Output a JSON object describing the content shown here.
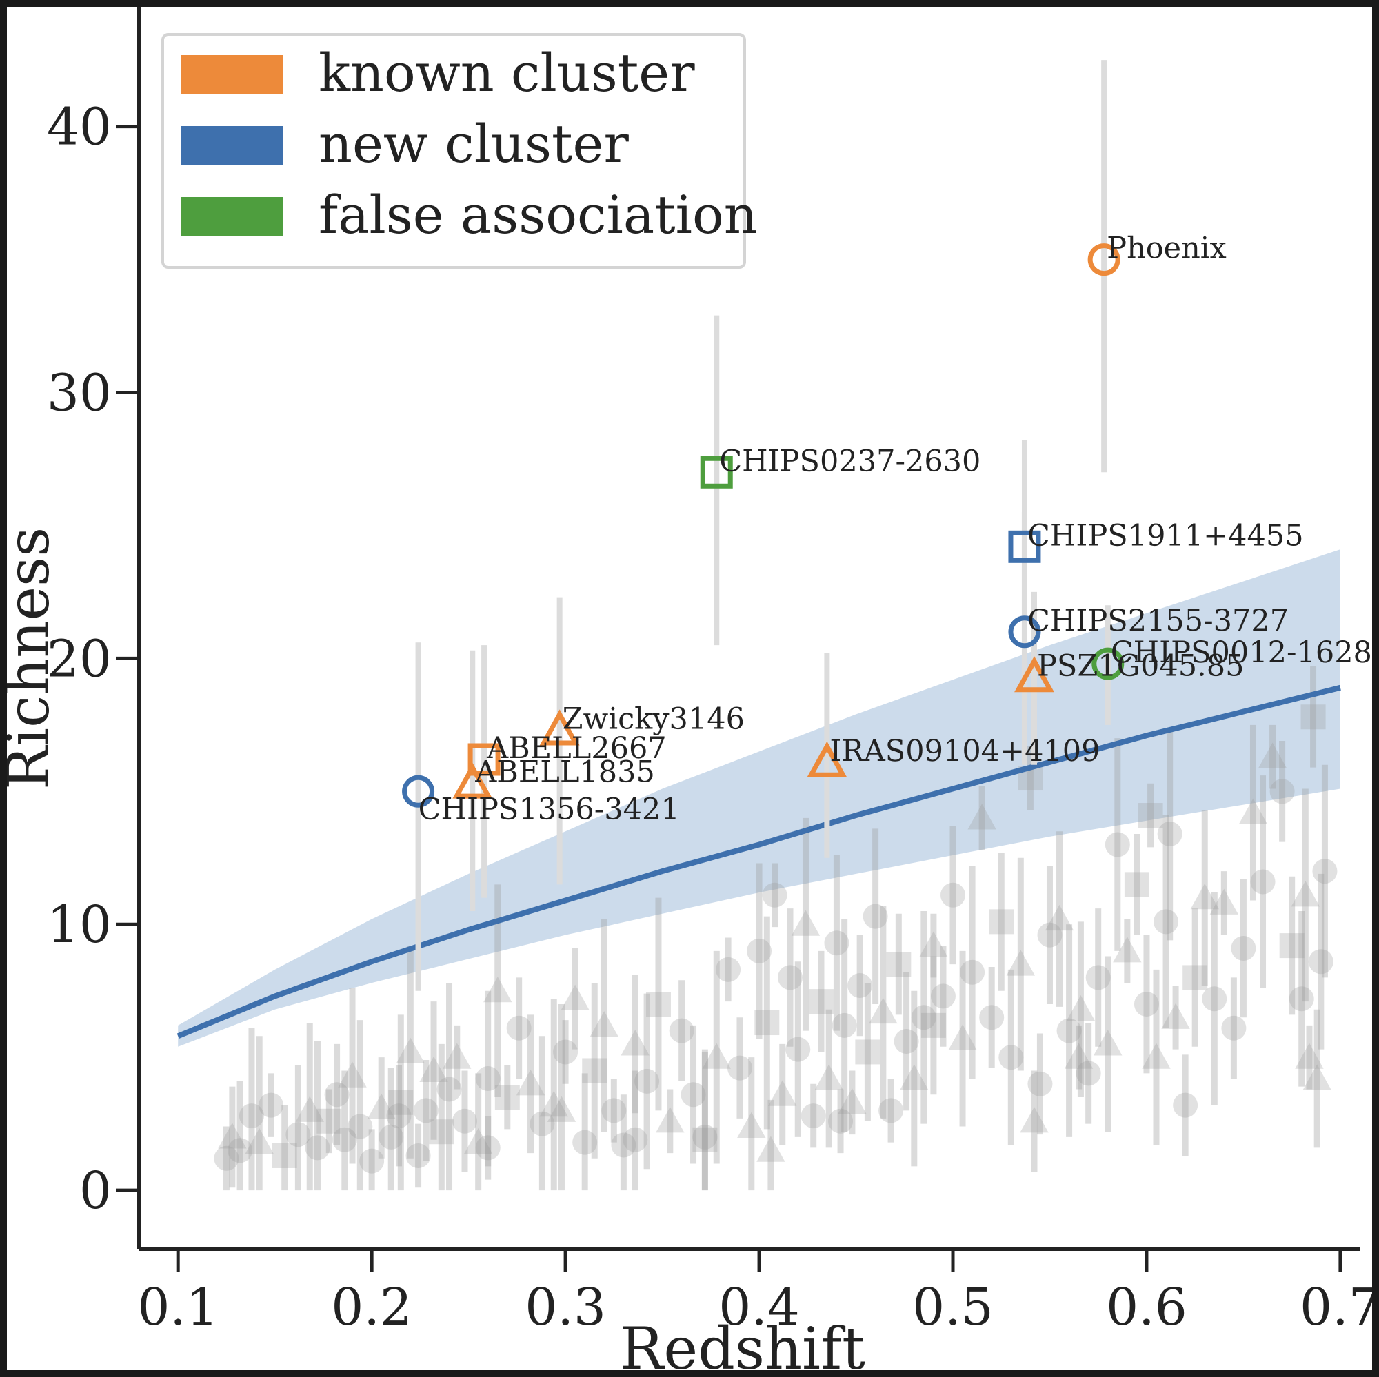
{
  "chart_data": {
    "type": "scatter",
    "xlabel": "Redshift",
    "ylabel": "Richness",
    "xlim": [
      0.08,
      0.71
    ],
    "ylim": [
      -2.2,
      44.5
    ],
    "xticks": [
      "0.1",
      "0.2",
      "0.3",
      "0.4",
      "0.5",
      "0.6",
      "0.7"
    ],
    "yticks": [
      "0",
      "10",
      "20",
      "30",
      "40"
    ],
    "grid": false,
    "legend": {
      "placement": "top-left",
      "entries": [
        {
          "label": "known cluster",
          "color": "#ed8a3a"
        },
        {
          "label": "new cluster",
          "color": "#3e70ad"
        },
        {
          "label": "false association",
          "color": "#4e9e3e"
        }
      ]
    },
    "colors": {
      "known": "#ed8a3a",
      "new": "#3e70ad",
      "false": "#4e9e3e",
      "background": "#9a9a9a",
      "errorbar": "#dcdcdc",
      "band": "#c3d5e7"
    },
    "threshold": {
      "x": [
        0.1,
        0.15,
        0.2,
        0.25,
        0.3,
        0.35,
        0.4,
        0.45,
        0.5,
        0.55,
        0.6,
        0.65,
        0.7
      ],
      "y": [
        5.8,
        7.3,
        8.6,
        9.8,
        10.9,
        12.0,
        13.0,
        14.1,
        15.1,
        16.1,
        17.1,
        18.0,
        18.9
      ],
      "band_low": [
        5.4,
        6.8,
        7.8,
        8.7,
        9.6,
        10.4,
        11.2,
        11.9,
        12.6,
        13.3,
        13.9,
        14.5,
        15.1
      ],
      "band_high": [
        6.2,
        8.3,
        10.2,
        11.9,
        13.5,
        15.1,
        16.5,
        17.9,
        19.2,
        20.5,
        21.7,
        22.9,
        24.1
      ]
    },
    "highlighted": [
      {
        "label": "Phoenix",
        "x": 0.578,
        "y": 35.0,
        "yerr_low": 27.0,
        "yerr_high": 42.5,
        "category": "known",
        "marker": "circle"
      },
      {
        "label": "CHIPS0237-2630",
        "x": 0.378,
        "y": 27.0,
        "yerr_low": 20.5,
        "yerr_high": 32.9,
        "category": "false",
        "marker": "square"
      },
      {
        "label": "CHIPS1911+4455",
        "x": 0.537,
        "y": 24.2,
        "yerr_low": 18.0,
        "yerr_high": 28.2,
        "category": "new",
        "marker": "square"
      },
      {
        "label": "CHIPS2155-3727",
        "x": 0.537,
        "y": 21.0,
        "yerr_low": 16.0,
        "yerr_high": 25.5,
        "category": "new",
        "marker": "circle"
      },
      {
        "label": "CHIPS0012-1628",
        "x": 0.58,
        "y": 19.8,
        "yerr_low": 17.5,
        "yerr_high": 22.0,
        "category": "false",
        "marker": "circle"
      },
      {
        "label": "PSZ1G045.85",
        "x": 0.542,
        "y": 19.3,
        "yerr_low": 16.0,
        "yerr_high": 22.5,
        "category": "known",
        "marker": "triangle"
      },
      {
        "label": "IRAS09104+4109",
        "x": 0.435,
        "y": 16.1,
        "yerr_low": 12.5,
        "yerr_high": 20.2,
        "category": "known",
        "marker": "triangle"
      },
      {
        "label": "Zwicky3146",
        "x": 0.297,
        "y": 17.3,
        "yerr_low": 11.5,
        "yerr_high": 22.3,
        "category": "known",
        "marker": "triangle"
      },
      {
        "label": "ABELL2667",
        "x": 0.258,
        "y": 16.2,
        "yerr_low": 11.0,
        "yerr_high": 20.5,
        "category": "known",
        "marker": "square"
      },
      {
        "label": "ABELL1835",
        "x": 0.252,
        "y": 15.3,
        "yerr_low": 10.5,
        "yerr_high": 20.3,
        "category": "known",
        "marker": "triangle"
      },
      {
        "label": "CHIPS1356-3421",
        "x": 0.224,
        "y": 15.0,
        "yerr_low": 7.5,
        "yerr_high": 20.6,
        "category": "new",
        "marker": "circle"
      }
    ],
    "background_points": [
      [
        0.125,
        1.2,
        "c"
      ],
      [
        0.128,
        2.0,
        "t"
      ],
      [
        0.132,
        1.5,
        "c"
      ],
      [
        0.138,
        2.8,
        "c"
      ],
      [
        0.142,
        1.8,
        "t"
      ],
      [
        0.148,
        3.2,
        "c"
      ],
      [
        0.155,
        1.3,
        "s"
      ],
      [
        0.162,
        2.1,
        "c"
      ],
      [
        0.168,
        3.0,
        "t"
      ],
      [
        0.172,
        1.6,
        "c"
      ],
      [
        0.178,
        2.6,
        "s"
      ],
      [
        0.182,
        3.6,
        "c"
      ],
      [
        0.186,
        1.9,
        "c"
      ],
      [
        0.19,
        4.3,
        "t"
      ],
      [
        0.194,
        2.4,
        "c"
      ],
      [
        0.2,
        1.1,
        "c"
      ],
      [
        0.205,
        3.1,
        "t"
      ],
      [
        0.21,
        2.0,
        "c"
      ],
      [
        0.215,
        3.3,
        "s"
      ],
      [
        0.22,
        5.2,
        "t"
      ],
      [
        0.224,
        1.3,
        "c"
      ],
      [
        0.228,
        3.0,
        "c"
      ],
      [
        0.232,
        4.5,
        "t"
      ],
      [
        0.236,
        2.2,
        "s"
      ],
      [
        0.24,
        3.8,
        "c"
      ],
      [
        0.244,
        5.0,
        "t"
      ],
      [
        0.248,
        2.6,
        "c"
      ],
      [
        0.255,
        1.8,
        "t"
      ],
      [
        0.26,
        4.2,
        "c"
      ],
      [
        0.265,
        7.5,
        "t"
      ],
      [
        0.27,
        3.5,
        "s"
      ],
      [
        0.276,
        6.1,
        "c"
      ],
      [
        0.282,
        4.0,
        "t"
      ],
      [
        0.288,
        2.5,
        "c"
      ],
      [
        0.294,
        3.2,
        "t"
      ],
      [
        0.3,
        5.2,
        "c"
      ],
      [
        0.305,
        7.2,
        "t"
      ],
      [
        0.31,
        1.8,
        "c"
      ],
      [
        0.315,
        4.5,
        "s"
      ],
      [
        0.32,
        6.2,
        "t"
      ],
      [
        0.325,
        3.0,
        "c"
      ],
      [
        0.33,
        1.7,
        "c"
      ],
      [
        0.336,
        5.5,
        "t"
      ],
      [
        0.342,
        4.1,
        "c"
      ],
      [
        0.348,
        7.0,
        "s"
      ],
      [
        0.354,
        2.6,
        "t"
      ],
      [
        0.36,
        6.0,
        "c"
      ],
      [
        0.366,
        3.6,
        "c"
      ],
      [
        0.372,
        1.9,
        "s"
      ],
      [
        0.378,
        5.0,
        "t"
      ],
      [
        0.384,
        8.3,
        "c"
      ],
      [
        0.39,
        4.6,
        "c"
      ],
      [
        0.396,
        2.4,
        "t"
      ],
      [
        0.4,
        9.0,
        "c"
      ],
      [
        0.404,
        6.3,
        "s"
      ],
      [
        0.408,
        11.1,
        "c"
      ],
      [
        0.412,
        3.6,
        "t"
      ],
      [
        0.416,
        8.0,
        "c"
      ],
      [
        0.42,
        5.3,
        "c"
      ],
      [
        0.424,
        10.0,
        "t"
      ],
      [
        0.428,
        2.8,
        "c"
      ],
      [
        0.432,
        7.1,
        "s"
      ],
      [
        0.436,
        4.2,
        "t"
      ],
      [
        0.44,
        9.3,
        "c"
      ],
      [
        0.444,
        6.2,
        "c"
      ],
      [
        0.448,
        3.3,
        "t"
      ],
      [
        0.452,
        7.7,
        "c"
      ],
      [
        0.456,
        5.2,
        "s"
      ],
      [
        0.46,
        10.3,
        "c"
      ],
      [
        0.464,
        6.7,
        "t"
      ],
      [
        0.468,
        3.0,
        "c"
      ],
      [
        0.472,
        8.5,
        "s"
      ],
      [
        0.476,
        5.6,
        "c"
      ],
      [
        0.48,
        4.2,
        "t"
      ],
      [
        0.485,
        6.5,
        "c"
      ],
      [
        0.49,
        9.2,
        "t"
      ],
      [
        0.495,
        7.3,
        "c"
      ],
      [
        0.5,
        11.1,
        "c"
      ],
      [
        0.505,
        5.7,
        "t"
      ],
      [
        0.51,
        8.2,
        "c"
      ],
      [
        0.515,
        14.0,
        "t"
      ],
      [
        0.52,
        6.5,
        "c"
      ],
      [
        0.525,
        10.1,
        "s"
      ],
      [
        0.53,
        5.0,
        "c"
      ],
      [
        0.535,
        8.5,
        "t"
      ],
      [
        0.54,
        15.5,
        "s"
      ],
      [
        0.545,
        4.0,
        "c"
      ],
      [
        0.55,
        9.6,
        "c"
      ],
      [
        0.555,
        10.2,
        "t"
      ],
      [
        0.56,
        6.0,
        "c"
      ],
      [
        0.565,
        5.0,
        "t"
      ],
      [
        0.57,
        4.4,
        "c"
      ],
      [
        0.575,
        8.0,
        "c"
      ],
      [
        0.58,
        5.5,
        "t"
      ],
      [
        0.585,
        13.0,
        "c"
      ],
      [
        0.59,
        9.0,
        "t"
      ],
      [
        0.595,
        11.5,
        "s"
      ],
      [
        0.6,
        7.0,
        "c"
      ],
      [
        0.605,
        5.0,
        "t"
      ],
      [
        0.61,
        10.1,
        "c"
      ],
      [
        0.615,
        6.5,
        "t"
      ],
      [
        0.62,
        3.2,
        "c"
      ],
      [
        0.625,
        8.0,
        "s"
      ],
      [
        0.63,
        11.0,
        "t"
      ],
      [
        0.635,
        7.2,
        "c"
      ],
      [
        0.64,
        10.8,
        "t"
      ],
      [
        0.645,
        6.1,
        "c"
      ],
      [
        0.65,
        9.1,
        "c"
      ],
      [
        0.655,
        14.2,
        "t"
      ],
      [
        0.66,
        11.6,
        "c"
      ],
      [
        0.665,
        16.3,
        "t"
      ],
      [
        0.67,
        15.0,
        "c"
      ],
      [
        0.675,
        9.2,
        "s"
      ],
      [
        0.68,
        7.2,
        "c"
      ],
      [
        0.682,
        11.1,
        "t"
      ],
      [
        0.684,
        5.0,
        "t"
      ],
      [
        0.686,
        17.8,
        "s"
      ],
      [
        0.688,
        4.2,
        "t"
      ],
      [
        0.69,
        8.6,
        "c"
      ],
      [
        0.692,
        12.0,
        "c"
      ],
      [
        0.442,
        2.6,
        "c"
      ],
      [
        0.406,
        1.5,
        "t"
      ],
      [
        0.336,
        1.9,
        "c"
      ],
      [
        0.372,
        2.0,
        "c"
      ],
      [
        0.298,
        3.0,
        "t"
      ],
      [
        0.26,
        1.6,
        "c"
      ],
      [
        0.214,
        2.8,
        "c"
      ],
      [
        0.49,
        6.2,
        "s"
      ],
      [
        0.566,
        6.8,
        "t"
      ],
      [
        0.612,
        13.4,
        "c"
      ],
      [
        0.602,
        14.1,
        "s"
      ],
      [
        0.542,
        2.6,
        "t"
      ]
    ]
  }
}
